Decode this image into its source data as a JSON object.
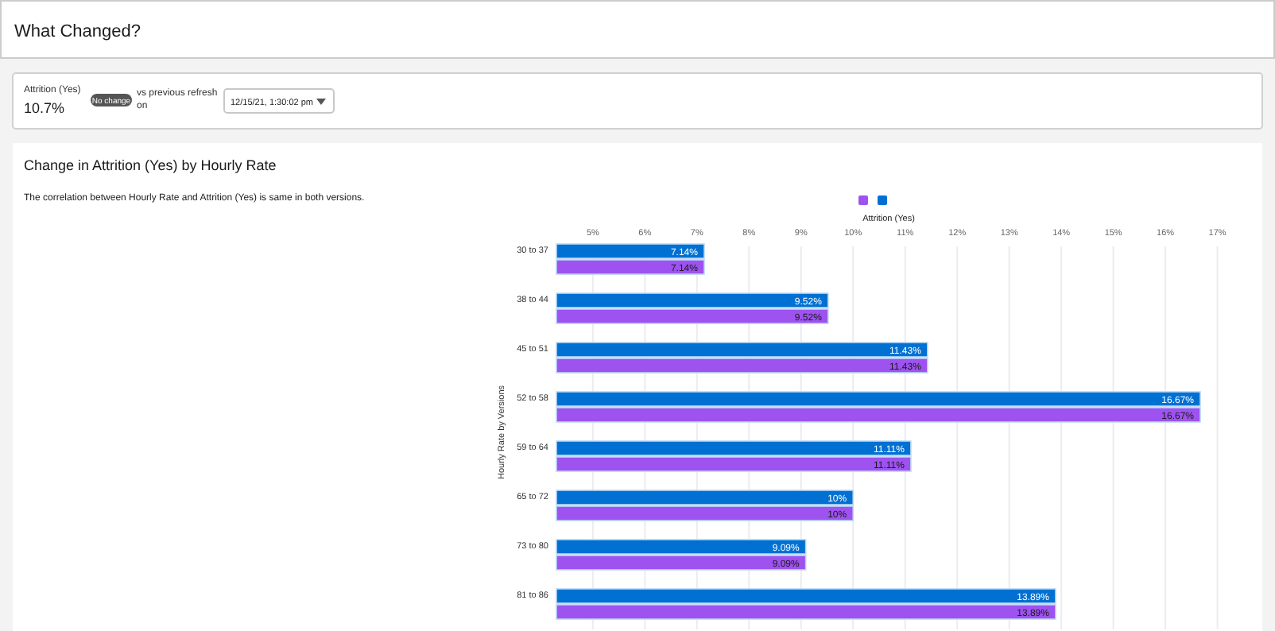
{
  "chart_data": {
    "type": "bar",
    "orientation": "horizontal",
    "title": "Change in Attrition (Yes) by Hourly Rate",
    "subtitle": "The correlation between Hourly Rate and Attrition (Yes) is same in both versions.",
    "xlabel": "Attrition (Yes)",
    "ylabel": "Hourly Rate by Versions",
    "annotations": [
      "What Changed?",
      "Attrition (Yes)",
      "10.7%",
      "No change",
      "vs previous refresh on",
      "12/15/21, 1:30:02 pm"
    ],
    "categories": [
      "30 to 37",
      "38 to 44",
      "45 to 51",
      "52 to 58",
      "59 to 64",
      "65 to 72",
      "73 to 80",
      "81 to 86"
    ],
    "series": [
      {
        "color": "#0070d2",
        "values": [
          7.14,
          9.52,
          11.43,
          16.67,
          11.11,
          10,
          9.09,
          13.89
        ],
        "value_labels": [
          "7.14%",
          "9.52%",
          "11.43%",
          "16.67%",
          "11.11%",
          "10%",
          "9.09%",
          "13.89%"
        ]
      },
      {
        "color": "#9e52f0",
        "values": [
          7.14,
          9.52,
          11.43,
          16.67,
          11.11,
          10,
          9.09,
          13.89
        ],
        "value_labels": [
          "7.14%",
          "9.52%",
          "11.43%",
          "16.67%",
          "11.11%",
          "10%",
          "9.09%",
          "13.89%"
        ]
      }
    ],
    "xlim": [
      4.3,
      17.8
    ],
    "xticks": [
      {
        "value": 5,
        "label": "5%"
      },
      {
        "value": 6,
        "label": "6%"
      },
      {
        "value": 7,
        "label": "7%"
      },
      {
        "value": 8,
        "label": "8%"
      },
      {
        "value": 9,
        "label": "9%"
      },
      {
        "value": 10,
        "label": "10%"
      },
      {
        "value": 11,
        "label": "11%"
      },
      {
        "value": 12,
        "label": "12%"
      },
      {
        "value": 13,
        "label": "13%"
      },
      {
        "value": 14,
        "label": "14%"
      },
      {
        "value": 15,
        "label": "15%"
      },
      {
        "value": 16,
        "label": "16%"
      },
      {
        "value": 17,
        "label": "17%"
      }
    ],
    "grid": "x"
  }
}
